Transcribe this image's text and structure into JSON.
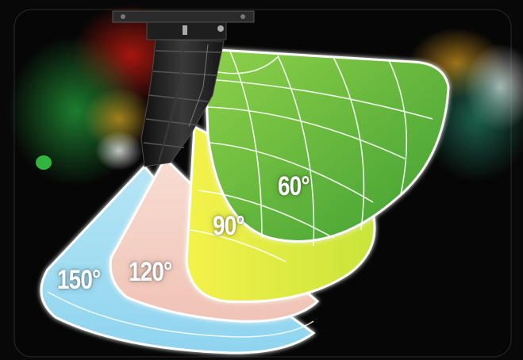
{
  "colors": {
    "background": "#080808",
    "coverage_150": "#bfe8f4",
    "coverage_120": "#f7d3c8",
    "coverage_90": "#e6ec3a",
    "coverage_60": "#5fb83a",
    "outline": "#ffffff",
    "speaker_body": "#1c1c1c"
  },
  "coverage_zones": [
    {
      "label": "150°"
    },
    {
      "label": "120°"
    },
    {
      "label": "90°"
    },
    {
      "label": "60°"
    }
  ],
  "icons": {
    "speaker": "line-array-speaker-icon",
    "rigging": "rigging-frame-icon"
  }
}
